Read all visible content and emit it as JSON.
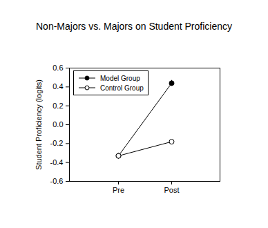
{
  "chart_data": {
    "type": "line",
    "title": "Non-Majors vs. Majors on Student Proficiency",
    "y_label": "Student Proficiency (logits)",
    "categories": [
      "Pre",
      "Post"
    ],
    "series": [
      {
        "name": "Model Group",
        "color": "#000000",
        "marker": "filled",
        "values": [
          -0.33,
          0.44
        ],
        "errors": [
          0.03,
          0.03
        ]
      },
      {
        "name": "Control Group",
        "color": "#000000",
        "marker": "open",
        "values": [
          -0.33,
          -0.18
        ],
        "errors": [
          0.03,
          0.015
        ]
      }
    ],
    "ylim": [
      -0.6,
      0.6
    ],
    "yticks": [
      -0.6,
      -0.4,
      -0.2,
      {
        "value": 0,
        "label": "0.0"
      },
      0.2,
      0.4,
      0.6
    ],
    "legend": "upper-left",
    "grid": false
  }
}
